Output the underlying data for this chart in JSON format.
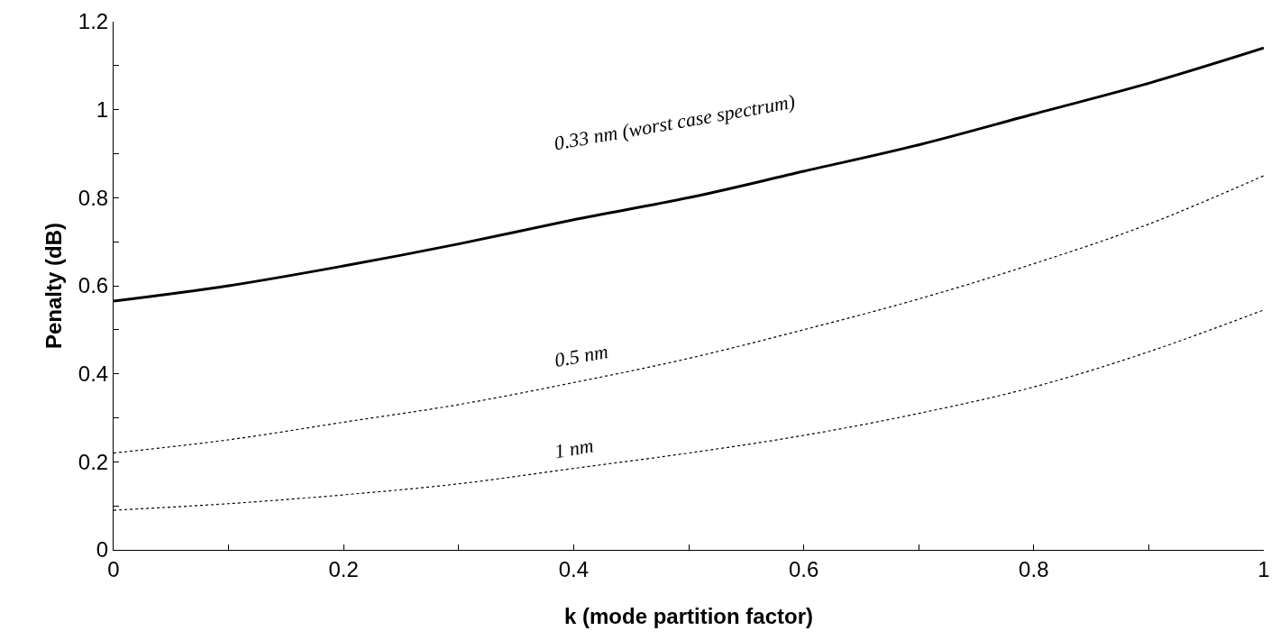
{
  "chart_data": {
    "type": "line",
    "xlabel": "k (mode partition factor)",
    "ylabel": "Penalty (dB)",
    "x": [
      0,
      0.1,
      0.2,
      0.3,
      0.4,
      0.5,
      0.6,
      0.7,
      0.8,
      0.9,
      1
    ],
    "series": [
      {
        "name": "0.33 nm (worst case spectrum)",
        "color": "#000000",
        "line_style": "solid",
        "values": [
          0.565,
          0.6,
          0.645,
          0.695,
          0.75,
          0.8,
          0.86,
          0.92,
          0.99,
          1.06,
          1.14
        ]
      },
      {
        "name": "0.5 nm",
        "color": "#000000",
        "line_style": "dotted",
        "values": [
          0.22,
          0.25,
          0.29,
          0.33,
          0.38,
          0.435,
          0.5,
          0.57,
          0.65,
          0.74,
          0.85
        ]
      },
      {
        "name": "1 nm",
        "color": "#000000",
        "line_style": "dotted",
        "values": [
          0.09,
          0.105,
          0.125,
          0.15,
          0.185,
          0.22,
          0.26,
          0.31,
          0.37,
          0.45,
          0.545
        ]
      }
    ],
    "xlim": [
      0,
      1
    ],
    "ylim": [
      0,
      1.2
    ],
    "xticks": [
      0,
      {
        "value": 0.1,
        "label": null
      },
      0.2,
      {
        "value": 0.3,
        "label": null
      },
      0.4,
      {
        "value": 0.5,
        "label": null
      },
      0.6,
      {
        "value": 0.7,
        "label": null
      },
      0.8,
      {
        "value": 0.9,
        "label": null
      },
      1
    ],
    "yticks": [
      0,
      {
        "value": 0.1,
        "label": null
      },
      0.2,
      {
        "value": 0.3,
        "label": null
      },
      0.4,
      {
        "value": 0.5,
        "label": null
      },
      0.6,
      {
        "value": 0.7,
        "label": null
      },
      0.8,
      {
        "value": 0.9,
        "label": null
      },
      1,
      {
        "value": 1.1,
        "label": null
      },
      1.2
    ],
    "grid": false,
    "legend": false,
    "marker": "none"
  }
}
